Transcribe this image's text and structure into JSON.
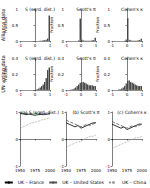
{
  "row_labels": [
    "Alliance data",
    "UN voting data"
  ],
  "chart_data": [
    {
      "type": "histogram",
      "title": "S (sqrd. dist.)",
      "y_label": "Fraction",
      "color": "#333333",
      "bins": [
        -1,
        -0.9,
        -0.8,
        -0.7,
        -0.6,
        -0.5,
        -0.4,
        -0.3,
        -0.2,
        -0.1,
        0,
        0.1,
        0.2,
        0.3,
        0.4,
        0.5,
        0.6,
        0.7,
        0.8,
        0.9,
        1
      ],
      "counts": [
        0,
        0,
        0,
        0,
        0,
        0,
        0,
        0,
        0,
        0,
        0,
        0,
        0,
        0.01,
        0.01,
        0.02,
        0.03,
        0.04,
        0.08,
        0.8
      ],
      "xlim": [
        -1,
        1
      ],
      "xticks": [
        -1,
        0,
        1
      ],
      "ylim": [
        0,
        1
      ],
      "yticks": [
        0,
        0.5,
        1
      ]
    },
    {
      "type": "histogram",
      "title": "Scott's π",
      "y_label": "Fraction",
      "color": "#333333",
      "bins": [
        -1,
        -0.9,
        -0.8,
        -0.7,
        -0.6,
        -0.5,
        -0.4,
        -0.3,
        -0.2,
        -0.1,
        0,
        0.1,
        0.2,
        0.3,
        0.4,
        0.5,
        0.6,
        0.7,
        0.8,
        0.9,
        1
      ],
      "counts": [
        0,
        0,
        0,
        0,
        0,
        0,
        0,
        0,
        0.02,
        0.7,
        0.05,
        0.02,
        0.01,
        0.01,
        0.01,
        0.01,
        0.01,
        0.02,
        0.03,
        0.1
      ],
      "xlim": [
        -1,
        1
      ],
      "xticks": [
        -1,
        0,
        1
      ],
      "ylim": [
        0,
        1
      ],
      "yticks": [
        0,
        0.5,
        1
      ]
    },
    {
      "type": "histogram",
      "title": "Cohen's κ",
      "y_label": "Fraction",
      "color": "#333333",
      "bins": [
        -1,
        -0.9,
        -0.8,
        -0.7,
        -0.6,
        -0.5,
        -0.4,
        -0.3,
        -0.2,
        -0.1,
        0,
        0.1,
        0.2,
        0.3,
        0.4,
        0.5,
        0.6,
        0.7,
        0.8,
        0.9,
        1
      ],
      "counts": [
        0,
        0,
        0,
        0,
        0,
        0,
        0,
        0,
        0.01,
        0.05,
        0.72,
        0.04,
        0.02,
        0.01,
        0.01,
        0.01,
        0.01,
        0.02,
        0.03,
        0.07
      ],
      "xlim": [
        -1,
        1
      ],
      "xticks": [
        -1,
        0,
        1
      ],
      "ylim": [
        0,
        1
      ],
      "yticks": [
        0,
        0.5,
        1
      ]
    },
    {
      "type": "histogram",
      "title": "S (sqrd. dist.)",
      "y_label": "Fraction",
      "color": "#333333",
      "bins": [
        -1,
        -0.9,
        -0.8,
        -0.7,
        -0.6,
        -0.5,
        -0.4,
        -0.3,
        -0.2,
        -0.1,
        0,
        0.1,
        0.2,
        0.3,
        0.4,
        0.5,
        0.6,
        0.7,
        0.8,
        0.9,
        1
      ],
      "counts": [
        0,
        0,
        0,
        0,
        0,
        0,
        0,
        0,
        0,
        0,
        0.005,
        0.01,
        0.02,
        0.03,
        0.05,
        0.07,
        0.1,
        0.15,
        0.25,
        0.28
      ],
      "xlim": [
        -1,
        1
      ],
      "xticks": [
        -1,
        0,
        1
      ],
      "ylim": [
        0,
        0.4
      ],
      "yticks": [
        0,
        0.2,
        0.4
      ]
    },
    {
      "type": "histogram",
      "title": "Scott's π",
      "y_label": "Fraction",
      "color": "#333333",
      "bins": [
        -1,
        -0.9,
        -0.8,
        -0.7,
        -0.6,
        -0.5,
        -0.4,
        -0.3,
        -0.2,
        -0.1,
        0,
        0.1,
        0.2,
        0.3,
        0.4,
        0.5,
        0.6,
        0.7,
        0.8,
        0.9,
        1
      ],
      "counts": [
        0,
        0,
        0,
        0.005,
        0.01,
        0.02,
        0.03,
        0.05,
        0.07,
        0.09,
        0.1,
        0.1,
        0.09,
        0.08,
        0.07,
        0.06,
        0.06,
        0.06,
        0.05,
        0.05
      ],
      "xlim": [
        -1,
        1
      ],
      "xticks": [
        -1,
        0,
        1
      ],
      "ylim": [
        0,
        0.4
      ],
      "yticks": [
        0,
        0.2,
        0.4
      ]
    },
    {
      "type": "histogram",
      "title": "Cohen's κ",
      "y_label": "Fraction",
      "color": "#333333",
      "bins": [
        -1,
        -0.9,
        -0.8,
        -0.7,
        -0.6,
        -0.5,
        -0.4,
        -0.3,
        -0.2,
        -0.1,
        0,
        0.1,
        0.2,
        0.3,
        0.4,
        0.5,
        0.6,
        0.7,
        0.8,
        0.9,
        1
      ],
      "counts": [
        0,
        0,
        0,
        0,
        0.005,
        0.01,
        0.02,
        0.03,
        0.05,
        0.08,
        0.12,
        0.12,
        0.1,
        0.09,
        0.08,
        0.07,
        0.06,
        0.05,
        0.05,
        0.05
      ],
      "xlim": [
        -1,
        1
      ],
      "xticks": [
        -1,
        0,
        1
      ],
      "ylim": [
        0,
        0.4
      ],
      "yticks": [
        0,
        0.2,
        0.4
      ]
    },
    {
      "type": "line",
      "title": "(a) S (sqrd. dist.)",
      "legend": "bottom",
      "x": [
        1950,
        1955,
        1960,
        1965,
        1970,
        1975,
        1980,
        1985,
        1990,
        1995,
        2000
      ],
      "xlim": [
        1950,
        2000
      ],
      "xticks": [
        1950,
        1975,
        2000
      ],
      "ylim": [
        -1,
        1
      ],
      "yticks": [
        -1,
        0,
        1
      ],
      "series": [
        {
          "name": "UK – France",
          "color": "#000000",
          "line_style": "solid",
          "values": [
            0.95,
            0.93,
            0.9,
            0.92,
            0.9,
            0.88,
            0.9,
            0.91,
            0.9,
            0.92,
            0.93
          ]
        },
        {
          "name": "UK – United States",
          "color": "#555555",
          "line_style": "dashed",
          "values": [
            0.97,
            0.96,
            0.95,
            0.95,
            0.93,
            0.94,
            0.95,
            0.96,
            0.95,
            0.96,
            0.97
          ]
        },
        {
          "name": "UK – China",
          "color": "#999999",
          "line_style": "dotted",
          "values": [
            0.4,
            0.45,
            0.5,
            0.55,
            0.6,
            0.62,
            0.65,
            0.7,
            0.72,
            0.75,
            0.78
          ]
        }
      ]
    },
    {
      "type": "line",
      "title": "(b) Scott's π",
      "x": [
        1950,
        1955,
        1960,
        1965,
        1970,
        1975,
        1980,
        1985,
        1990,
        1995,
        2000
      ],
      "xlim": [
        1950,
        2000
      ],
      "xticks": [
        1950,
        1975,
        2000
      ],
      "ylim": [
        -1,
        1
      ],
      "yticks": [
        -1,
        0,
        1
      ],
      "series": [
        {
          "name": "UK – France",
          "color": "#000000",
          "line_style": "solid",
          "values": [
            0.6,
            0.55,
            0.5,
            0.45,
            0.5,
            0.4,
            0.45,
            0.5,
            0.55,
            0.6,
            0.6
          ]
        },
        {
          "name": "UK – United States",
          "color": "#555555",
          "line_style": "dashed",
          "values": [
            0.7,
            0.65,
            0.6,
            0.55,
            0.5,
            0.45,
            0.5,
            0.55,
            0.5,
            0.55,
            0.6
          ]
        },
        {
          "name": "UK – China",
          "color": "#999999",
          "line_style": "dotted",
          "values": [
            -0.3,
            -0.25,
            -0.2,
            -0.15,
            -0.1,
            -0.1,
            0,
            0.05,
            0.1,
            0.1,
            0.15
          ]
        }
      ]
    },
    {
      "type": "line",
      "title": "(c) Cohen's κ",
      "x": [
        1950,
        1955,
        1960,
        1965,
        1970,
        1975,
        1980,
        1985,
        1990,
        1995,
        2000
      ],
      "xlim": [
        1950,
        2000
      ],
      "xticks": [
        1950,
        1975,
        2000
      ],
      "ylim": [
        -1,
        1
      ],
      "yticks": [
        -1,
        0,
        1
      ],
      "series": [
        {
          "name": "UK – France",
          "color": "#000000",
          "line_style": "solid",
          "values": [
            0.55,
            0.5,
            0.45,
            0.4,
            0.45,
            0.35,
            0.4,
            0.45,
            0.5,
            0.55,
            0.55
          ]
        },
        {
          "name": "UK – United States",
          "color": "#555555",
          "line_style": "dashed",
          "values": [
            0.65,
            0.6,
            0.55,
            0.5,
            0.45,
            0.4,
            0.45,
            0.5,
            0.45,
            0.5,
            0.55
          ]
        },
        {
          "name": "UK – China",
          "color": "#999999",
          "line_style": "dotted",
          "values": [
            -0.35,
            -0.3,
            -0.25,
            -0.2,
            -0.15,
            -0.12,
            -0.05,
            0,
            0.05,
            0.05,
            0.1
          ]
        }
      ]
    }
  ]
}
